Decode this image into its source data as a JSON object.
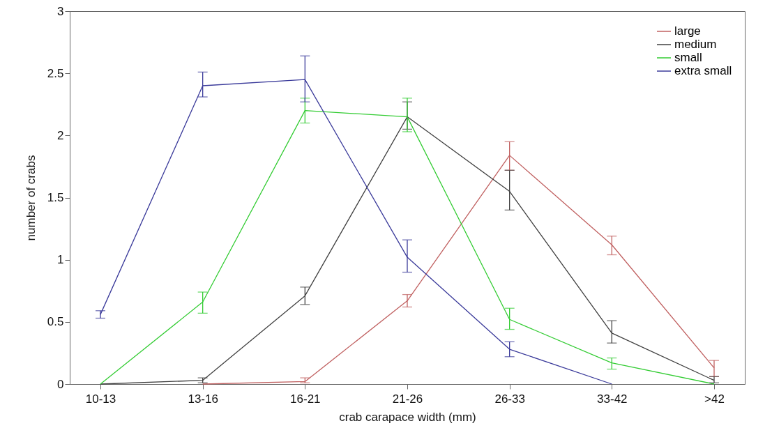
{
  "chart_data": {
    "type": "line",
    "xlabel": "crab carapace width (mm)",
    "ylabel": "number of crabs",
    "categories": [
      "10-13",
      "13-16",
      "16-21",
      "21-26",
      "26-33",
      "33-42",
      ">42"
    ],
    "ylim": [
      0,
      3
    ],
    "yticks": [
      0,
      0.5,
      1,
      1.5,
      2,
      2.5,
      3
    ],
    "grid": false,
    "legend": "top right",
    "marker": "none",
    "line_style": "solid",
    "series": [
      {
        "name": "large",
        "color": "#c06060",
        "values": [
          null,
          0,
          0.02,
          0.67,
          1.84,
          1.12,
          0.13
        ],
        "errors": [
          null,
          null,
          [
            0.01,
            0.05
          ],
          0.05,
          [
            1.72,
            1.95
          ],
          [
            1.04,
            1.19
          ],
          [
            0.06,
            0.19
          ]
        ]
      },
      {
        "name": "medium",
        "color": "#404040",
        "values": [
          0,
          0.03,
          0.71,
          2.15,
          1.55,
          0.41,
          0.03
        ],
        "errors": [
          null,
          0.02,
          0.07,
          [
            2.05,
            2.27
          ],
          [
            1.4,
            1.72
          ],
          [
            0.33,
            0.51
          ],
          [
            0.01,
            0.06
          ]
        ]
      },
      {
        "name": "small",
        "color": "#33cc33",
        "values": [
          0,
          0.66,
          2.2,
          2.15,
          0.52,
          0.17,
          0
        ],
        "errors": [
          null,
          [
            0.57,
            0.74
          ],
          0.1,
          [
            2.03,
            2.3
          ],
          [
            0.44,
            0.61
          ],
          [
            0.12,
            0.21
          ],
          null
        ]
      },
      {
        "name": "extra small",
        "color": "#3a3a9a",
        "values": [
          0.56,
          2.4,
          2.45,
          1.02,
          0.28,
          0,
          null
        ],
        "errors": [
          0.03,
          [
            2.31,
            2.51
          ],
          [
            2.27,
            2.64
          ],
          [
            0.9,
            1.16
          ],
          [
            0.22,
            0.34
          ],
          null,
          null
        ]
      }
    ]
  }
}
